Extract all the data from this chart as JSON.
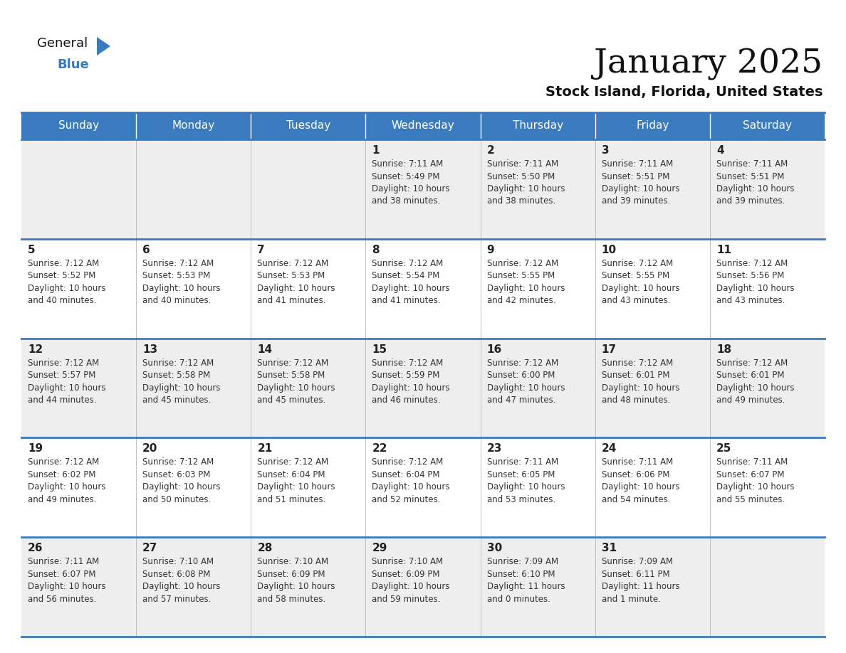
{
  "title": "January 2025",
  "subtitle": "Stock Island, Florida, United States",
  "header_color": "#3a7bbf",
  "header_text_color": "#ffffff",
  "cell_bg_row0": "#eeeeee",
  "cell_bg_row1": "#ffffff",
  "cell_bg_row2": "#eeeeee",
  "cell_bg_row3": "#ffffff",
  "cell_bg_row4": "#eeeeee",
  "border_color": "#3a7bbf",
  "text_color": "#333333",
  "day_number_color": "#222222",
  "days_of_week": [
    "Sunday",
    "Monday",
    "Tuesday",
    "Wednesday",
    "Thursday",
    "Friday",
    "Saturday"
  ],
  "calendar": [
    [
      {
        "day": "",
        "info": ""
      },
      {
        "day": "",
        "info": ""
      },
      {
        "day": "",
        "info": ""
      },
      {
        "day": "1",
        "info": "Sunrise: 7:11 AM\nSunset: 5:49 PM\nDaylight: 10 hours\nand 38 minutes."
      },
      {
        "day": "2",
        "info": "Sunrise: 7:11 AM\nSunset: 5:50 PM\nDaylight: 10 hours\nand 38 minutes."
      },
      {
        "day": "3",
        "info": "Sunrise: 7:11 AM\nSunset: 5:51 PM\nDaylight: 10 hours\nand 39 minutes."
      },
      {
        "day": "4",
        "info": "Sunrise: 7:11 AM\nSunset: 5:51 PM\nDaylight: 10 hours\nand 39 minutes."
      }
    ],
    [
      {
        "day": "5",
        "info": "Sunrise: 7:12 AM\nSunset: 5:52 PM\nDaylight: 10 hours\nand 40 minutes."
      },
      {
        "day": "6",
        "info": "Sunrise: 7:12 AM\nSunset: 5:53 PM\nDaylight: 10 hours\nand 40 minutes."
      },
      {
        "day": "7",
        "info": "Sunrise: 7:12 AM\nSunset: 5:53 PM\nDaylight: 10 hours\nand 41 minutes."
      },
      {
        "day": "8",
        "info": "Sunrise: 7:12 AM\nSunset: 5:54 PM\nDaylight: 10 hours\nand 41 minutes."
      },
      {
        "day": "9",
        "info": "Sunrise: 7:12 AM\nSunset: 5:55 PM\nDaylight: 10 hours\nand 42 minutes."
      },
      {
        "day": "10",
        "info": "Sunrise: 7:12 AM\nSunset: 5:55 PM\nDaylight: 10 hours\nand 43 minutes."
      },
      {
        "day": "11",
        "info": "Sunrise: 7:12 AM\nSunset: 5:56 PM\nDaylight: 10 hours\nand 43 minutes."
      }
    ],
    [
      {
        "day": "12",
        "info": "Sunrise: 7:12 AM\nSunset: 5:57 PM\nDaylight: 10 hours\nand 44 minutes."
      },
      {
        "day": "13",
        "info": "Sunrise: 7:12 AM\nSunset: 5:58 PM\nDaylight: 10 hours\nand 45 minutes."
      },
      {
        "day": "14",
        "info": "Sunrise: 7:12 AM\nSunset: 5:58 PM\nDaylight: 10 hours\nand 45 minutes."
      },
      {
        "day": "15",
        "info": "Sunrise: 7:12 AM\nSunset: 5:59 PM\nDaylight: 10 hours\nand 46 minutes."
      },
      {
        "day": "16",
        "info": "Sunrise: 7:12 AM\nSunset: 6:00 PM\nDaylight: 10 hours\nand 47 minutes."
      },
      {
        "day": "17",
        "info": "Sunrise: 7:12 AM\nSunset: 6:01 PM\nDaylight: 10 hours\nand 48 minutes."
      },
      {
        "day": "18",
        "info": "Sunrise: 7:12 AM\nSunset: 6:01 PM\nDaylight: 10 hours\nand 49 minutes."
      }
    ],
    [
      {
        "day": "19",
        "info": "Sunrise: 7:12 AM\nSunset: 6:02 PM\nDaylight: 10 hours\nand 49 minutes."
      },
      {
        "day": "20",
        "info": "Sunrise: 7:12 AM\nSunset: 6:03 PM\nDaylight: 10 hours\nand 50 minutes."
      },
      {
        "day": "21",
        "info": "Sunrise: 7:12 AM\nSunset: 6:04 PM\nDaylight: 10 hours\nand 51 minutes."
      },
      {
        "day": "22",
        "info": "Sunrise: 7:12 AM\nSunset: 6:04 PM\nDaylight: 10 hours\nand 52 minutes."
      },
      {
        "day": "23",
        "info": "Sunrise: 7:11 AM\nSunset: 6:05 PM\nDaylight: 10 hours\nand 53 minutes."
      },
      {
        "day": "24",
        "info": "Sunrise: 7:11 AM\nSunset: 6:06 PM\nDaylight: 10 hours\nand 54 minutes."
      },
      {
        "day": "25",
        "info": "Sunrise: 7:11 AM\nSunset: 6:07 PM\nDaylight: 10 hours\nand 55 minutes."
      }
    ],
    [
      {
        "day": "26",
        "info": "Sunrise: 7:11 AM\nSunset: 6:07 PM\nDaylight: 10 hours\nand 56 minutes."
      },
      {
        "day": "27",
        "info": "Sunrise: 7:10 AM\nSunset: 6:08 PM\nDaylight: 10 hours\nand 57 minutes."
      },
      {
        "day": "28",
        "info": "Sunrise: 7:10 AM\nSunset: 6:09 PM\nDaylight: 10 hours\nand 58 minutes."
      },
      {
        "day": "29",
        "info": "Sunrise: 7:10 AM\nSunset: 6:09 PM\nDaylight: 10 hours\nand 59 minutes."
      },
      {
        "day": "30",
        "info": "Sunrise: 7:09 AM\nSunset: 6:10 PM\nDaylight: 11 hours\nand 0 minutes."
      },
      {
        "day": "31",
        "info": "Sunrise: 7:09 AM\nSunset: 6:11 PM\nDaylight: 11 hours\nand 1 minute."
      },
      {
        "day": "",
        "info": ""
      }
    ]
  ],
  "row_bg_colors": [
    "#eeeeee",
    "#ffffff",
    "#eeeeee",
    "#ffffff",
    "#eeeeee"
  ]
}
